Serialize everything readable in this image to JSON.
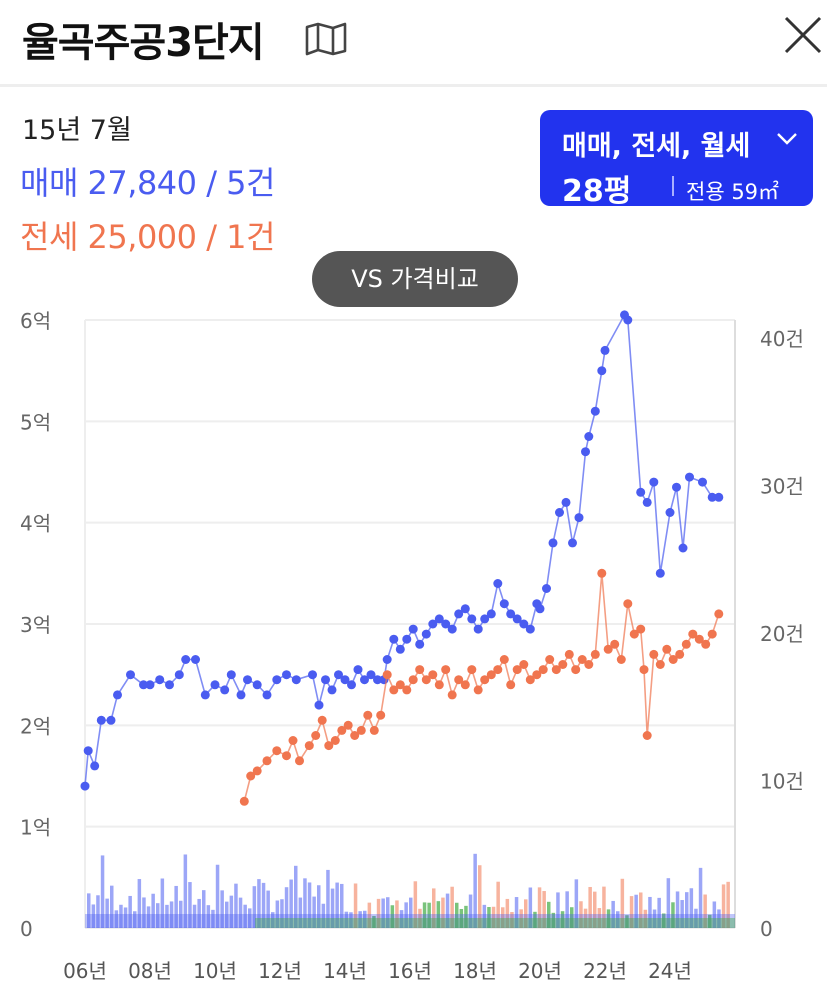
{
  "header": {
    "title": "율곡주공3단지",
    "map_icon": "map-icon",
    "close_icon": "close-icon"
  },
  "summary": {
    "date": "15년 7월",
    "sale_text": "매매 27,840 / 5건",
    "jeonse_text": "전세 25,000 / 1건"
  },
  "filter": {
    "types_label": "매매, 전세, 월세",
    "size_label": "28평",
    "area_label": "전용 59㎡"
  },
  "vs_button": {
    "label": "VS 가격비교"
  },
  "colors": {
    "sale": "#4a5cf0",
    "jeonse": "#f0754f",
    "monthly": "#4caf50",
    "accent": "#2233ee"
  },
  "chart_data": {
    "type": "line",
    "x_tick_labels": [
      "06년",
      "08년",
      "10년",
      "12년",
      "14년",
      "16년",
      "18년",
      "20년",
      "22년",
      "24년"
    ],
    "y_left_tick_labels": [
      "0",
      "1억",
      "2억",
      "3억",
      "4억",
      "5억",
      "6억"
    ],
    "y_right_tick_labels": [
      "0",
      "10건",
      "20건",
      "30건",
      "40건"
    ],
    "x_range": [
      2006,
      2026
    ],
    "y_left_range": [
      0,
      6
    ],
    "y_right_range": [
      0,
      40
    ],
    "grid": true,
    "series": [
      {
        "name": "매매",
        "values": [
          [
            2006.0,
            1.4
          ],
          [
            2006.1,
            1.75
          ],
          [
            2006.3,
            1.6
          ],
          [
            2006.5,
            2.05
          ],
          [
            2006.8,
            2.05
          ],
          [
            2007.0,
            2.3
          ],
          [
            2007.4,
            2.5
          ],
          [
            2007.8,
            2.4
          ],
          [
            2008.0,
            2.4
          ],
          [
            2008.3,
            2.45
          ],
          [
            2008.6,
            2.4
          ],
          [
            2008.9,
            2.5
          ],
          [
            2009.1,
            2.65
          ],
          [
            2009.4,
            2.65
          ],
          [
            2009.7,
            2.3
          ],
          [
            2010.0,
            2.4
          ],
          [
            2010.3,
            2.35
          ],
          [
            2010.5,
            2.5
          ],
          [
            2010.8,
            2.3
          ],
          [
            2011.0,
            2.45
          ],
          [
            2011.3,
            2.4
          ],
          [
            2011.6,
            2.3
          ],
          [
            2011.9,
            2.45
          ],
          [
            2012.2,
            2.5
          ],
          [
            2012.5,
            2.45
          ],
          [
            2013.0,
            2.5
          ],
          [
            2013.2,
            2.2
          ],
          [
            2013.4,
            2.45
          ],
          [
            2013.6,
            2.35
          ],
          [
            2013.8,
            2.5
          ],
          [
            2014.0,
            2.45
          ],
          [
            2014.2,
            2.4
          ],
          [
            2014.4,
            2.55
          ],
          [
            2014.6,
            2.45
          ],
          [
            2014.8,
            2.5
          ],
          [
            2015.0,
            2.45
          ],
          [
            2015.2,
            2.45
          ],
          [
            2015.3,
            2.65
          ],
          [
            2015.5,
            2.85
          ],
          [
            2015.7,
            2.75
          ],
          [
            2015.9,
            2.85
          ],
          [
            2016.1,
            2.95
          ],
          [
            2016.3,
            2.8
          ],
          [
            2016.5,
            2.9
          ],
          [
            2016.7,
            3.0
          ],
          [
            2016.9,
            3.05
          ],
          [
            2017.1,
            3.0
          ],
          [
            2017.3,
            2.95
          ],
          [
            2017.5,
            3.1
          ],
          [
            2017.7,
            3.15
          ],
          [
            2017.9,
            3.05
          ],
          [
            2018.1,
            2.95
          ],
          [
            2018.3,
            3.05
          ],
          [
            2018.5,
            3.1
          ],
          [
            2018.7,
            3.4
          ],
          [
            2018.9,
            3.2
          ],
          [
            2019.1,
            3.1
          ],
          [
            2019.3,
            3.05
          ],
          [
            2019.5,
            3.0
          ],
          [
            2019.7,
            2.95
          ],
          [
            2019.9,
            3.2
          ],
          [
            2020.0,
            3.15
          ],
          [
            2020.2,
            3.35
          ],
          [
            2020.4,
            3.8
          ],
          [
            2020.6,
            4.1
          ],
          [
            2020.8,
            4.2
          ],
          [
            2021.0,
            3.8
          ],
          [
            2021.2,
            4.05
          ],
          [
            2021.4,
            4.7
          ],
          [
            2021.5,
            4.85
          ],
          [
            2021.7,
            5.1
          ],
          [
            2021.9,
            5.5
          ],
          [
            2022.0,
            5.7
          ],
          [
            2022.6,
            6.05
          ],
          [
            2022.7,
            6.0
          ],
          [
            2023.1,
            4.3
          ],
          [
            2023.3,
            4.2
          ],
          [
            2023.5,
            4.4
          ],
          [
            2023.7,
            3.5
          ],
          [
            2024.0,
            4.1
          ],
          [
            2024.2,
            4.35
          ],
          [
            2024.4,
            3.75
          ],
          [
            2024.6,
            4.45
          ],
          [
            2025.0,
            4.4
          ],
          [
            2025.3,
            4.25
          ],
          [
            2025.5,
            4.25
          ]
        ]
      },
      {
        "name": "전세",
        "values": [
          [
            2010.9,
            1.25
          ],
          [
            2011.1,
            1.5
          ],
          [
            2011.3,
            1.55
          ],
          [
            2011.6,
            1.65
          ],
          [
            2011.9,
            1.75
          ],
          [
            2012.2,
            1.7
          ],
          [
            2012.4,
            1.85
          ],
          [
            2012.6,
            1.65
          ],
          [
            2012.9,
            1.8
          ],
          [
            2013.1,
            1.9
          ],
          [
            2013.3,
            2.05
          ],
          [
            2013.5,
            1.8
          ],
          [
            2013.7,
            1.85
          ],
          [
            2013.9,
            1.95
          ],
          [
            2014.1,
            2.0
          ],
          [
            2014.3,
            1.9
          ],
          [
            2014.5,
            1.95
          ],
          [
            2014.7,
            2.1
          ],
          [
            2014.9,
            1.95
          ],
          [
            2015.1,
            2.1
          ],
          [
            2015.3,
            2.5
          ],
          [
            2015.5,
            2.35
          ],
          [
            2015.7,
            2.4
          ],
          [
            2015.9,
            2.35
          ],
          [
            2016.1,
            2.45
          ],
          [
            2016.3,
            2.55
          ],
          [
            2016.5,
            2.45
          ],
          [
            2016.7,
            2.5
          ],
          [
            2016.9,
            2.4
          ],
          [
            2017.1,
            2.55
          ],
          [
            2017.3,
            2.3
          ],
          [
            2017.5,
            2.45
          ],
          [
            2017.7,
            2.4
          ],
          [
            2017.9,
            2.55
          ],
          [
            2018.1,
            2.35
          ],
          [
            2018.3,
            2.45
          ],
          [
            2018.5,
            2.5
          ],
          [
            2018.7,
            2.55
          ],
          [
            2018.9,
            2.65
          ],
          [
            2019.1,
            2.4
          ],
          [
            2019.3,
            2.55
          ],
          [
            2019.5,
            2.6
          ],
          [
            2019.7,
            2.45
          ],
          [
            2019.9,
            2.5
          ],
          [
            2020.1,
            2.55
          ],
          [
            2020.3,
            2.65
          ],
          [
            2020.5,
            2.55
          ],
          [
            2020.7,
            2.6
          ],
          [
            2020.9,
            2.7
          ],
          [
            2021.1,
            2.55
          ],
          [
            2021.3,
            2.65
          ],
          [
            2021.5,
            2.6
          ],
          [
            2021.7,
            2.7
          ],
          [
            2021.9,
            3.5
          ],
          [
            2022.1,
            2.75
          ],
          [
            2022.3,
            2.8
          ],
          [
            2022.5,
            2.65
          ],
          [
            2022.7,
            3.2
          ],
          [
            2022.9,
            2.9
          ],
          [
            2023.1,
            2.95
          ],
          [
            2023.2,
            2.55
          ],
          [
            2023.3,
            1.9
          ],
          [
            2023.5,
            2.7
          ],
          [
            2023.7,
            2.6
          ],
          [
            2023.9,
            2.75
          ],
          [
            2024.1,
            2.65
          ],
          [
            2024.3,
            2.7
          ],
          [
            2024.5,
            2.8
          ],
          [
            2024.7,
            2.9
          ],
          [
            2024.9,
            2.85
          ],
          [
            2025.1,
            2.8
          ],
          [
            2025.3,
            2.9
          ],
          [
            2025.5,
            3.1
          ]
        ]
      }
    ]
  }
}
